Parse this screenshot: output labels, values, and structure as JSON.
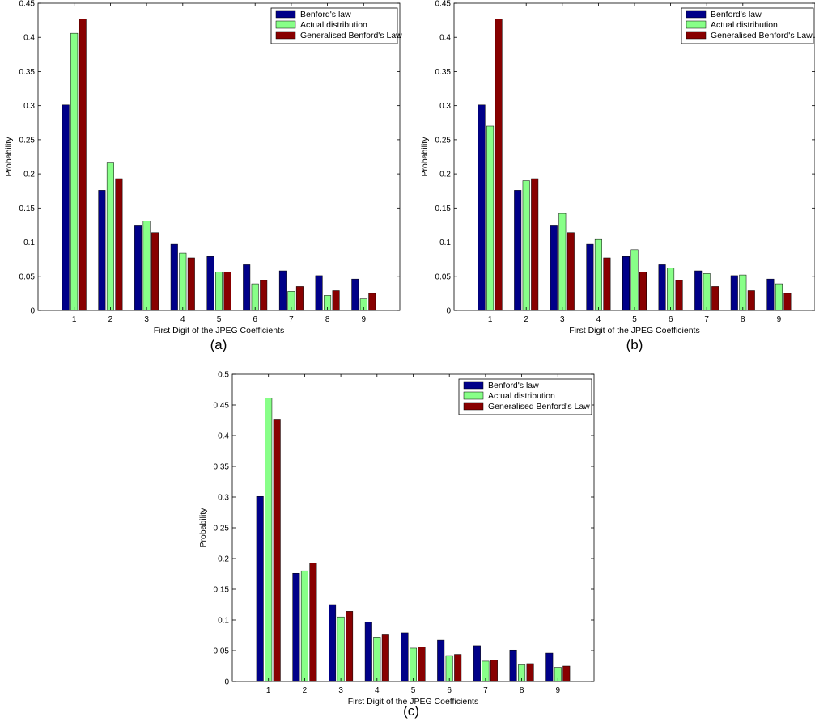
{
  "figure": {
    "colors": {
      "benford": "#000088",
      "actual": "#88ff88",
      "generalised": "#880000"
    }
  },
  "chart_data": [
    {
      "type": "bar",
      "panel": "(a)",
      "categories": [
        "1",
        "2",
        "3",
        "4",
        "5",
        "6",
        "7",
        "8",
        "9"
      ],
      "series": [
        {
          "name": "Benford's law",
          "values": [
            0.301,
            0.176,
            0.125,
            0.097,
            0.079,
            0.067,
            0.058,
            0.051,
            0.046
          ]
        },
        {
          "name": "Actual distribution",
          "values": [
            0.406,
            0.216,
            0.131,
            0.084,
            0.056,
            0.039,
            0.028,
            0.022,
            0.017
          ]
        },
        {
          "name": "Generalised Benford's Law",
          "values": [
            0.427,
            0.193,
            0.114,
            0.077,
            0.056,
            0.044,
            0.035,
            0.029,
            0.025
          ]
        }
      ],
      "xlabel": "First Digit of the JPEG Coefficients",
      "ylabel": "Probability",
      "ylim": [
        0,
        0.45
      ],
      "yticks": [
        "0",
        "0.05",
        "0.1",
        "0.15",
        "0.2",
        "0.25",
        "0.3",
        "0.35",
        "0.4",
        "0.45"
      ],
      "legend_position": "top-right",
      "grid": false
    },
    {
      "type": "bar",
      "panel": "(b)",
      "categories": [
        "1",
        "2",
        "3",
        "4",
        "5",
        "6",
        "7",
        "8",
        "9"
      ],
      "series": [
        {
          "name": "Benford's law",
          "values": [
            0.301,
            0.176,
            0.125,
            0.097,
            0.079,
            0.067,
            0.058,
            0.051,
            0.046
          ]
        },
        {
          "name": "Actual distribution",
          "values": [
            0.27,
            0.19,
            0.142,
            0.104,
            0.089,
            0.062,
            0.054,
            0.052,
            0.039
          ]
        },
        {
          "name": "Generalised Benford's Law",
          "values": [
            0.427,
            0.193,
            0.114,
            0.077,
            0.056,
            0.044,
            0.035,
            0.029,
            0.025
          ]
        }
      ],
      "xlabel": "First Digit of the JPEG Coefficients",
      "ylabel": "Probability",
      "ylim": [
        0,
        0.45
      ],
      "yticks": [
        "0",
        "0.05",
        "0.1",
        "0.15",
        "0.2",
        "0.25",
        "0.3",
        "0.35",
        "0.4",
        "0.45"
      ],
      "legend_position": "top-right",
      "grid": false
    },
    {
      "type": "bar",
      "panel": "(c)",
      "categories": [
        "1",
        "2",
        "3",
        "4",
        "5",
        "6",
        "7",
        "8",
        "9"
      ],
      "series": [
        {
          "name": "Benford's law",
          "values": [
            0.301,
            0.176,
            0.125,
            0.097,
            0.079,
            0.067,
            0.058,
            0.051,
            0.046
          ]
        },
        {
          "name": "Actual distribution",
          "values": [
            0.461,
            0.18,
            0.105,
            0.072,
            0.054,
            0.042,
            0.033,
            0.027,
            0.023
          ]
        },
        {
          "name": "Generalised Benford's Law",
          "values": [
            0.427,
            0.193,
            0.114,
            0.077,
            0.056,
            0.044,
            0.035,
            0.029,
            0.025
          ]
        }
      ],
      "xlabel": "First Digit of the JPEG Coefficients",
      "ylabel": "Probability",
      "ylim": [
        0,
        0.5
      ],
      "yticks": [
        "0",
        "0.05",
        "0.1",
        "0.15",
        "0.2",
        "0.25",
        "0.3",
        "0.35",
        "0.4",
        "0.45",
        "0.5"
      ],
      "legend_position": "top-right",
      "grid": false
    }
  ]
}
